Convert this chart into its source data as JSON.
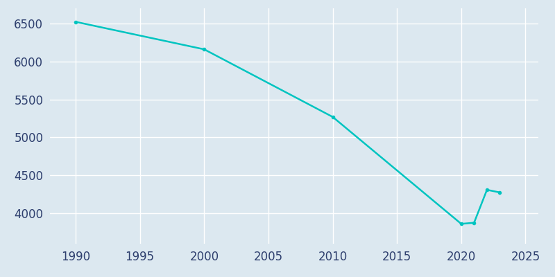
{
  "years": [
    1990,
    2000,
    2010,
    2020,
    2021,
    2022,
    2023
  ],
  "population": [
    6522,
    6160,
    5270,
    3862,
    3877,
    4310,
    4276
  ],
  "line_color": "#00c4c0",
  "marker": "o",
  "marker_size": 3,
  "line_width": 1.8,
  "background_color": "#dce8f0",
  "grid_color": "#ffffff",
  "text_color": "#2e3f6e",
  "xlim": [
    1988,
    2026
  ],
  "ylim": [
    3600,
    6700
  ],
  "xticks": [
    1990,
    1995,
    2000,
    2005,
    2010,
    2015,
    2020,
    2025
  ],
  "yticks": [
    4000,
    4500,
    5000,
    5500,
    6000,
    6500
  ],
  "tick_fontsize": 12
}
